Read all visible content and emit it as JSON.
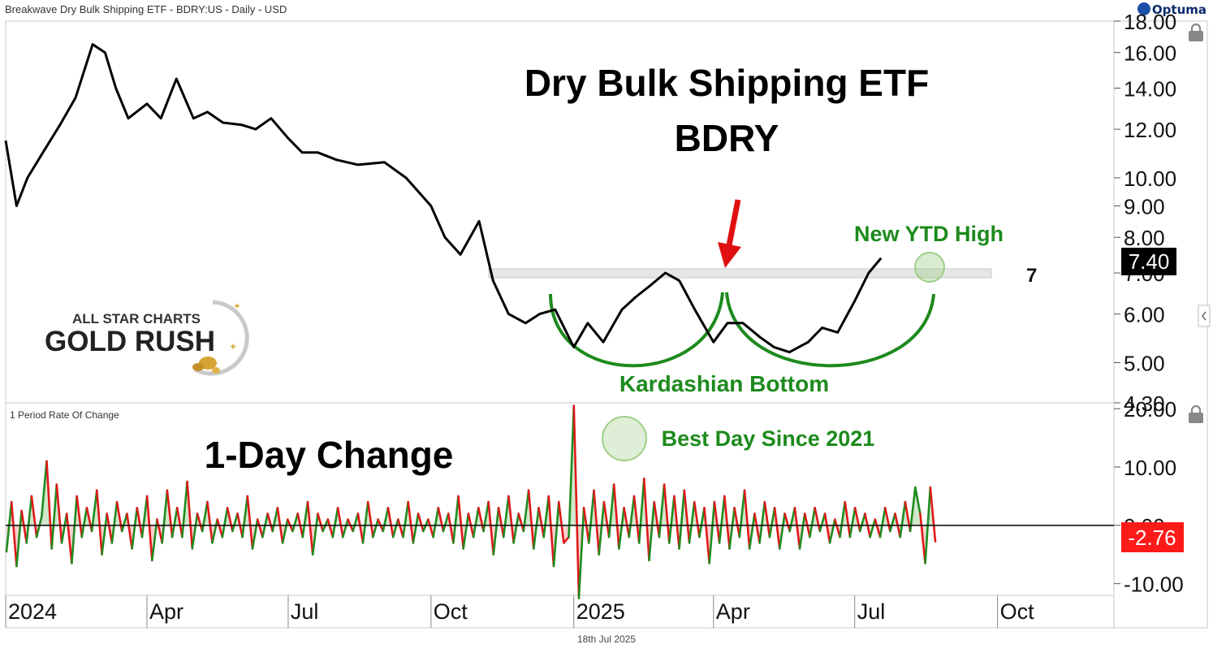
{
  "header": {
    "title": "Breakwave Dry Bulk Shipping ETF - BDRY:US - Daily - USD",
    "brand": "Optuma"
  },
  "footer": {
    "date": "18th Jul 2025"
  },
  "colors": {
    "price_line": "#000000",
    "annotation_green": "#1d8a1d",
    "arrow_red": "#e01010",
    "roc_positive": "#1f8b1f",
    "roc_negative": "#e01818",
    "last_price_bg": "#000000",
    "last_roc_bg": "#ff1a1a"
  },
  "icons": [
    "lock-icon",
    "lock-icon",
    "chevron-left-icon",
    "optuma-logo-icon",
    "gold-nugget-icon"
  ],
  "chart_data": [
    {
      "type": "line",
      "panel": "price",
      "title": "Dry Bulk Shipping ETF",
      "subtitle": "BDRY",
      "scale": "log",
      "ylim": [
        4.3,
        18.0
      ],
      "y_ticks": [
        "18.00",
        "16.00",
        "14.00",
        "12.00",
        "10.00",
        "9.00",
        "8.00",
        "7.00",
        "6.00",
        "5.00",
        "4.30"
      ],
      "x_ticks": [
        "2024",
        "Apr",
        "Jul",
        "Oct",
        "2025",
        "Apr",
        "Jul",
        "Oct"
      ],
      "last_value_label": "7.40",
      "horizontal_level_label": "7",
      "series": [
        {
          "x": [
            "2024-01-01",
            "2024-01-08",
            "2024-01-15",
            "2024-01-25",
            "2024-02-05",
            "2024-02-15",
            "2024-02-26",
            "2024-03-05",
            "2024-03-12",
            "2024-03-20",
            "2024-04-01",
            "2024-04-10",
            "2024-04-20",
            "2024-05-01",
            "2024-05-10",
            "2024-05-20",
            "2024-06-01",
            "2024-06-10",
            "2024-06-20",
            "2024-07-01",
            "2024-07-10",
            "2024-07-20",
            "2024-08-01",
            "2024-08-15",
            "2024-09-01",
            "2024-09-15",
            "2024-10-01",
            "2024-10-10",
            "2024-10-20",
            "2024-11-01",
            "2024-11-10",
            "2024-11-20",
            "2024-12-01",
            "2024-12-10",
            "2024-12-20",
            "2025-01-01",
            "2025-01-10",
            "2025-01-20",
            "2025-02-01",
            "2025-02-10",
            "2025-02-20",
            "2025-03-01",
            "2025-03-10",
            "2025-03-20",
            "2025-04-01",
            "2025-04-10",
            "2025-04-20",
            "2025-05-01",
            "2025-05-10",
            "2025-05-20",
            "2025-06-01",
            "2025-06-10",
            "2025-06-20",
            "2025-07-01",
            "2025-07-10",
            "2025-07-18"
          ],
          "values": [
            11.5,
            9.0,
            10.0,
            11.0,
            12.2,
            13.5,
            16.5,
            16.0,
            14.0,
            12.5,
            13.2,
            12.5,
            14.5,
            12.5,
            12.8,
            12.3,
            12.2,
            12.0,
            12.5,
            11.6,
            11.0,
            11.0,
            10.7,
            10.5,
            10.6,
            10.0,
            9.0,
            8.0,
            7.5,
            8.5,
            6.8,
            6.0,
            5.8,
            6.0,
            6.1,
            5.3,
            5.8,
            5.4,
            6.1,
            6.4,
            6.7,
            7.0,
            6.8,
            6.1,
            5.4,
            5.8,
            5.8,
            5.5,
            5.3,
            5.2,
            5.4,
            5.7,
            5.6,
            6.3,
            7.0,
            7.4
          ]
        }
      ],
      "annotations": {
        "pattern_label": "Kardashian Bottom",
        "new_high_label": "New YTD High"
      }
    },
    {
      "type": "line",
      "panel": "rate_of_change",
      "title": "1-Day Change",
      "indicator_label": "1 Period Rate Of Change",
      "ylim": [
        -12,
        21
      ],
      "y_ticks": [
        "20.00",
        "10.00",
        "0.00",
        "-10.00"
      ],
      "last_value_label": "-2.76",
      "annotation": "Best Day Since 2021",
      "series": [
        {
          "values": [
            -4.5,
            4,
            -7,
            2.5,
            -3,
            5,
            -2,
            1.5,
            11,
            -4,
            7,
            -3,
            2,
            -6.5,
            5,
            -2,
            3,
            -1,
            6,
            -5,
            2,
            -3,
            4,
            -1,
            2,
            -4,
            3,
            -2,
            5,
            -6,
            1,
            -3,
            6,
            -2,
            3,
            -2,
            7.5,
            -4,
            2,
            -1,
            4,
            -3,
            1,
            -2,
            3,
            -1,
            2,
            -2,
            5,
            -4,
            1,
            -2,
            2,
            -1,
            3,
            -3,
            1,
            -1,
            2,
            -2,
            4,
            -5,
            2,
            -1,
            1,
            -2,
            3,
            -2,
            1,
            -1,
            2,
            -3,
            4,
            -2,
            1,
            -1,
            3,
            -2,
            1,
            -2,
            4,
            -3,
            2,
            -1,
            1,
            -2,
            3,
            -1,
            2,
            -3,
            5,
            -4,
            2,
            -2,
            3,
            -1,
            4,
            -5,
            3,
            -2,
            5,
            -3,
            2,
            -1,
            6,
            -4,
            3,
            -2,
            5,
            -7,
            4,
            -3,
            -2,
            20.5,
            -12.5,
            3,
            -3,
            6,
            -5,
            4,
            -2,
            7,
            -4,
            3,
            -2,
            5,
            -3,
            8,
            -6,
            4,
            -2,
            7,
            -3,
            5,
            -4,
            6,
            -3,
            4,
            -2,
            3,
            -6.5,
            4,
            -3,
            5,
            -4,
            3,
            -2,
            6,
            -4,
            2,
            -3,
            4,
            -2,
            3,
            -4,
            2,
            -1,
            3,
            -4,
            2,
            -2,
            3,
            -1,
            2,
            -3,
            1,
            -2,
            4,
            -2,
            3,
            -1,
            2,
            -2,
            1,
            -2,
            3,
            -1,
            2,
            -2,
            4,
            -1,
            6.5,
            2,
            -6.5,
            6.5,
            -2.76
          ]
        }
      ]
    }
  ]
}
